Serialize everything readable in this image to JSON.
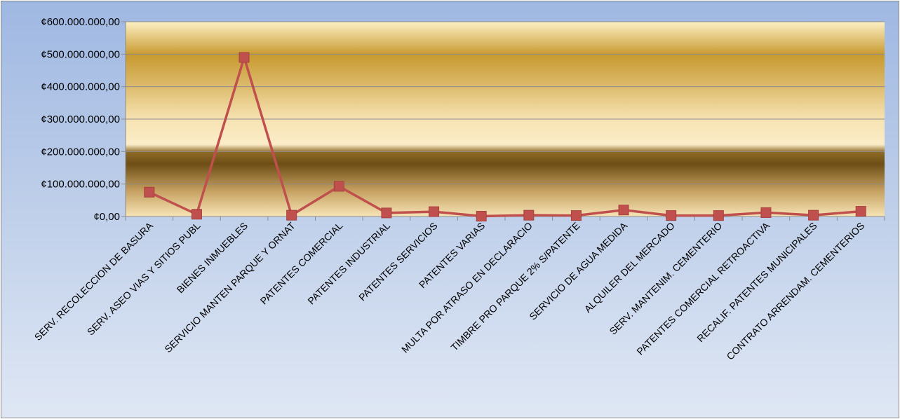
{
  "chart_data": {
    "type": "line",
    "title": "",
    "xlabel": "",
    "ylabel": "",
    "ylim": [
      0,
      600000000
    ],
    "yticks": [
      0,
      100000000,
      200000000,
      300000000,
      400000000,
      500000000,
      600000000
    ],
    "ytick_labels": [
      "¢0,00",
      "¢100.000.000,00",
      "¢200.000.000,00",
      "¢300.000.000,00",
      "¢400.000.000,00",
      "¢500.000.000,00",
      "¢600.000.000,00"
    ],
    "grid": true,
    "legend": "none",
    "line_color": "#c0504d",
    "marker": "square",
    "categories": [
      "SERV. RECOLECCION DE BASURA",
      "SERV. ASEO VIAS Y SITIOS PUBL",
      "BIENES INMUEBLES",
      "SERVICIO MANTEN PARQUE Y ORNAT",
      "PATENTES COMERCIAL",
      "PATENTES INDUSTRIAL",
      "PATENTES SERVICIOS",
      "PATENTES VARIAS",
      "MULTA POR ATRASO EN DECLARACIO",
      "TIMBRE PRO PARQUE 2% S/PATENTE",
      "SERVICIO DE AGUA MEDIDA",
      "ALQUILER DEL MERCADO",
      "SERV. MANTENIM. CEMENTERIO",
      "PATENTES COMERCIAL RETROACTIVA",
      "RECALIF. PATENTES MUNICIPALES",
      "CONTRATO ARRENDAM. CEMENTERIOS"
    ],
    "series": [
      {
        "values": [
          75000000,
          7000000,
          490000000,
          4000000,
          93000000,
          11000000,
          15000000,
          1000000,
          4000000,
          3000000,
          20000000,
          3000000,
          3000000,
          12000000,
          4000000,
          16000000
        ]
      }
    ]
  }
}
